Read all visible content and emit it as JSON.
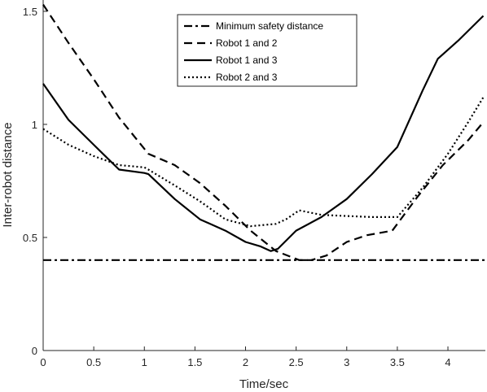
{
  "chart_data": {
    "type": "line",
    "title": "",
    "xlabel": "Time/sec",
    "ylabel": "Inter-robot distance",
    "xlim": [
      0,
      4.37
    ],
    "ylim": [
      0,
      1.55
    ],
    "xticks": [
      0,
      0.5,
      1,
      1.5,
      2,
      2.5,
      3,
      3.5,
      4
    ],
    "yticks": [
      0,
      0.5,
      1,
      1.5
    ],
    "xtick_labels": [
      "0",
      "0.5",
      "1",
      "1.5",
      "2",
      "2.5",
      "3",
      "3.5",
      "4"
    ],
    "ytick_labels": [
      "0",
      "0.5",
      "1",
      "1.5"
    ],
    "grid": false,
    "legend_position": "top-center",
    "series": [
      {
        "name": "Minimum safety distance",
        "style": "dashdot",
        "color": "#000000",
        "x": [
          0,
          4.37
        ],
        "y": [
          0.4,
          0.4
        ]
      },
      {
        "name": "Robot 1 and 2",
        "style": "dashed",
        "color": "#000000",
        "x": [
          0,
          0.25,
          0.5,
          0.75,
          1.04,
          1.3,
          1.55,
          1.8,
          2.05,
          2.3,
          2.53,
          2.65,
          2.8,
          3.0,
          3.2,
          3.45,
          3.7,
          3.95,
          4.2,
          4.35
        ],
        "y": [
          1.53,
          1.36,
          1.2,
          1.03,
          0.87,
          0.82,
          0.74,
          0.64,
          0.53,
          0.44,
          0.4,
          0.4,
          0.42,
          0.48,
          0.51,
          0.53,
          0.68,
          0.82,
          0.93,
          1.01
        ]
      },
      {
        "name": "Robot 1 and 3",
        "style": "solid",
        "color": "#000000",
        "x": [
          0,
          0.25,
          0.5,
          0.75,
          1.0,
          1.04,
          1.3,
          1.55,
          1.8,
          2.0,
          2.15,
          2.25,
          2.32,
          2.5,
          2.75,
          3.0,
          3.25,
          3.5,
          3.75,
          3.9,
          4.1,
          4.35
        ],
        "y": [
          1.18,
          1.02,
          0.91,
          0.8,
          0.785,
          0.78,
          0.67,
          0.58,
          0.53,
          0.48,
          0.46,
          0.44,
          0.45,
          0.53,
          0.59,
          0.67,
          0.78,
          0.9,
          1.15,
          1.29,
          1.37,
          1.48
        ]
      },
      {
        "name": "Robot 2 and 3",
        "style": "dotted",
        "color": "#000000",
        "x": [
          0,
          0.25,
          0.5,
          0.75,
          1.0,
          1.04,
          1.3,
          1.55,
          1.8,
          2.05,
          2.3,
          2.4,
          2.53,
          2.75,
          3.0,
          3.25,
          3.5,
          3.75,
          4.0,
          4.2,
          4.35
        ],
        "y": [
          0.98,
          0.91,
          0.86,
          0.82,
          0.81,
          0.8,
          0.73,
          0.66,
          0.58,
          0.55,
          0.56,
          0.58,
          0.62,
          0.6,
          0.595,
          0.59,
          0.59,
          0.72,
          0.87,
          1.01,
          1.12
        ]
      }
    ]
  }
}
